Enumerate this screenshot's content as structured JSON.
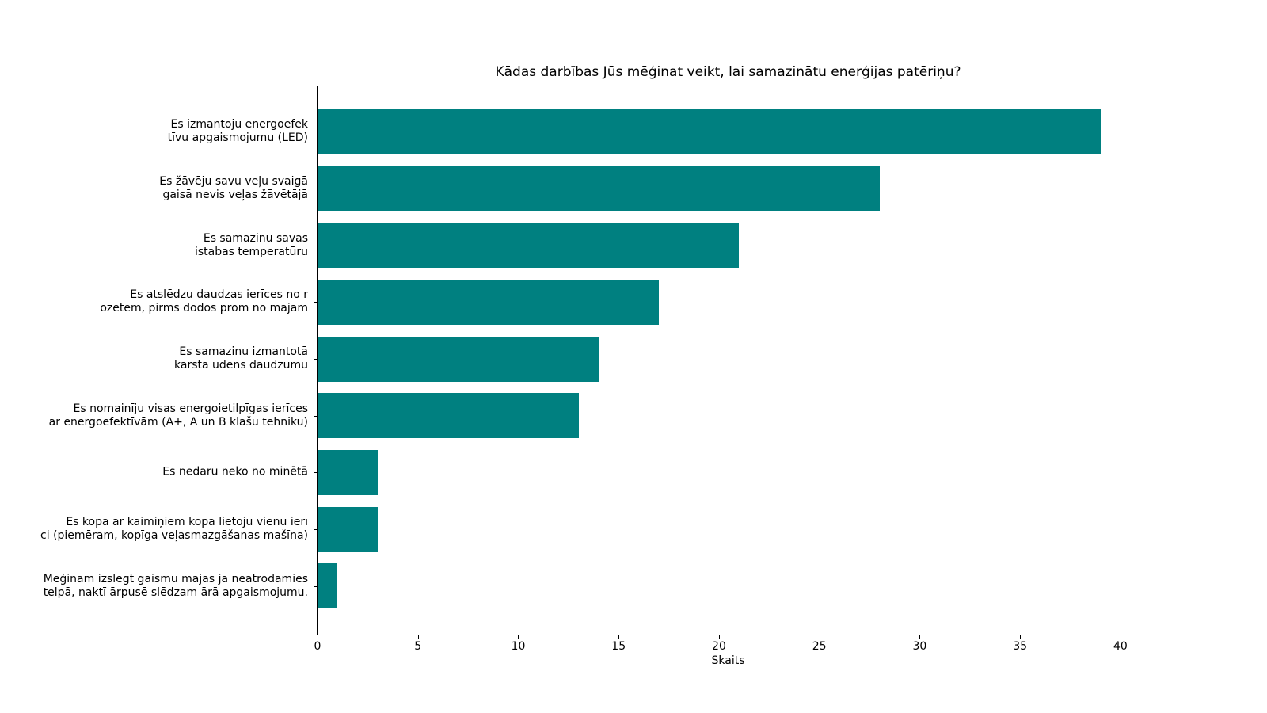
{
  "chart_data": {
    "type": "bar",
    "orientation": "horizontal",
    "title": "Kādas darbības Jūs mēģinat veikt, lai samazinātu enerģijas patēriņu?",
    "xlabel": "Skaits",
    "ylabel": "",
    "categories": [
      "Es izmantoju energoefek\ntīvu apgaismojumu (LED)",
      "Es žāvēju savu veļu svaigā\ngaisā nevis veļas žāvētājā",
      "Es samazinu savas\nistabas temperatūru",
      "Es atslēdzu daudzas ierīces no r\nozetēm, pirms dodos prom no mājām",
      "Es samazinu izmantotā\nkarstā ūdens daudzumu",
      "Es nomainīju visas energoietilpīgas ierīces\nar energoefektīvām (A+, A un B klašu tehniku)",
      "Es nedaru neko no minētā",
      "Es kopā ar kaimiņiem kopā lietoju vienu ierī\nci (piemēram, kopīga veļasmazgāšanas mašīna)",
      "Mēģinam izslēgt gaismu mājās ja neatrodamies\ntelpā, naktī ārpusē slēdzam ārā apgaismojumu."
    ],
    "values": [
      39,
      28,
      21,
      17,
      14,
      13,
      3,
      3,
      1
    ],
    "xticks": [
      0,
      5,
      10,
      15,
      20,
      25,
      30,
      35,
      40
    ],
    "xlim": [
      0,
      40.95
    ],
    "bar_color": "#008080",
    "axis_color": "#000000",
    "background_color": "#ffffff",
    "grid": false,
    "legend": "none"
  }
}
